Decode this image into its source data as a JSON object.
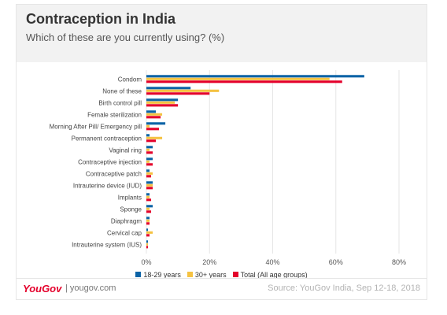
{
  "title": "Contraception in India",
  "subtitle": "Which of these are you currently using? (%)",
  "brand": "YouGov",
  "site": "| yougov.com",
  "source": "Source: YouGov India, Sep 12-18, 2018",
  "chart_data": {
    "type": "bar",
    "orientation": "horizontal",
    "title": "Contraception in India",
    "categories": [
      "Condom",
      "None of these",
      "Birth control pill",
      "Female sterilization",
      "Morning After Pill/ Emergency pill",
      "Permanent contraception",
      "Vaginal ring",
      "Contraceptive injection",
      "Contraceptive patch",
      "Intrauterine device (IUD)",
      "Implants",
      "Sponge",
      "Diaphragm",
      "Cervical cap",
      "Intrauterine system (IUS)"
    ],
    "series": [
      {
        "name": "18-29 years",
        "color": "#0b63a6",
        "values": [
          69,
          14,
          10,
          3,
          6,
          1,
          2,
          2,
          1,
          2,
          1,
          2,
          1,
          0.5,
          0.5
        ]
      },
      {
        "name": "30+ years",
        "color": "#f5c242",
        "values": [
          58,
          23,
          9,
          5,
          1,
          5,
          1,
          1,
          2,
          2,
          1,
          1,
          1,
          2,
          0.5
        ]
      },
      {
        "name": "Total (All age groups)",
        "color": "#e4002b",
        "values": [
          62,
          20,
          10,
          4.5,
          4,
          3,
          2,
          2,
          1.5,
          2,
          1.5,
          1.5,
          1,
          1,
          0.5
        ]
      }
    ],
    "xlim": [
      0,
      80
    ],
    "xticks": [
      0,
      20,
      40,
      60,
      80
    ],
    "tick_suffix": "%",
    "grid": true,
    "legend_position": "bottom"
  }
}
